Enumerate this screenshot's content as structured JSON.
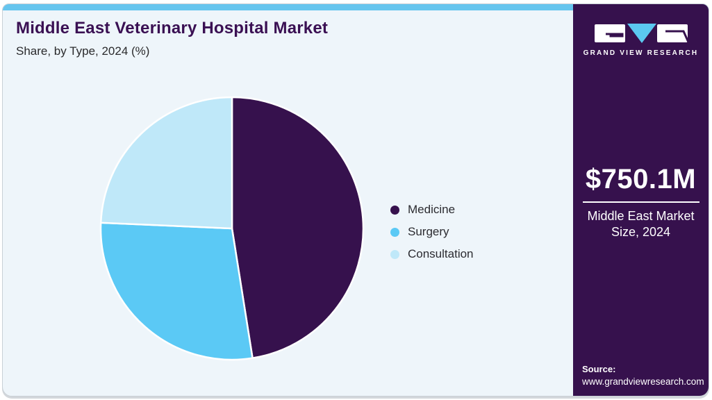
{
  "header": {
    "title": "Middle East Veterinary Hospital Market",
    "subtitle": "Share, by Type, 2024 (%)"
  },
  "chart_data": {
    "type": "pie",
    "title": "Middle East Veterinary Hospital Market Share, by Type, 2024 (%)",
    "categories": [
      "Medicine",
      "Surgery",
      "Consultation"
    ],
    "values": [
      47.5,
      28.2,
      24.3
    ],
    "colors": [
      "#36114d",
      "#5bc9f5",
      "#bfe8f9"
    ],
    "start_angle_deg": 0,
    "direction": "clockwise",
    "legend_position": "right",
    "slice_gap_color": "#ffffff"
  },
  "legend": {
    "items": [
      {
        "label": "Medicine",
        "color": "#36114d"
      },
      {
        "label": "Surgery",
        "color": "#5bc9f5"
      },
      {
        "label": "Consultation",
        "color": "#bfe8f9"
      }
    ]
  },
  "sidebar": {
    "brand_name": "GRAND VIEW RESEARCH",
    "stat_value": "$750.1M",
    "stat_label": "Middle East Market Size, 2024",
    "source_label": "Source:",
    "source_url": "www.grandviewresearch.com"
  },
  "theme": {
    "accent_bar": "#66c5ee",
    "card_bg": "#eef5fa",
    "card_border": "#c9d0d6",
    "sidebar_bg": "#36114d",
    "title_color": "#3a1053",
    "text_dark": "#2a2a2c",
    "logo_triangle": "#5bc8f0"
  }
}
